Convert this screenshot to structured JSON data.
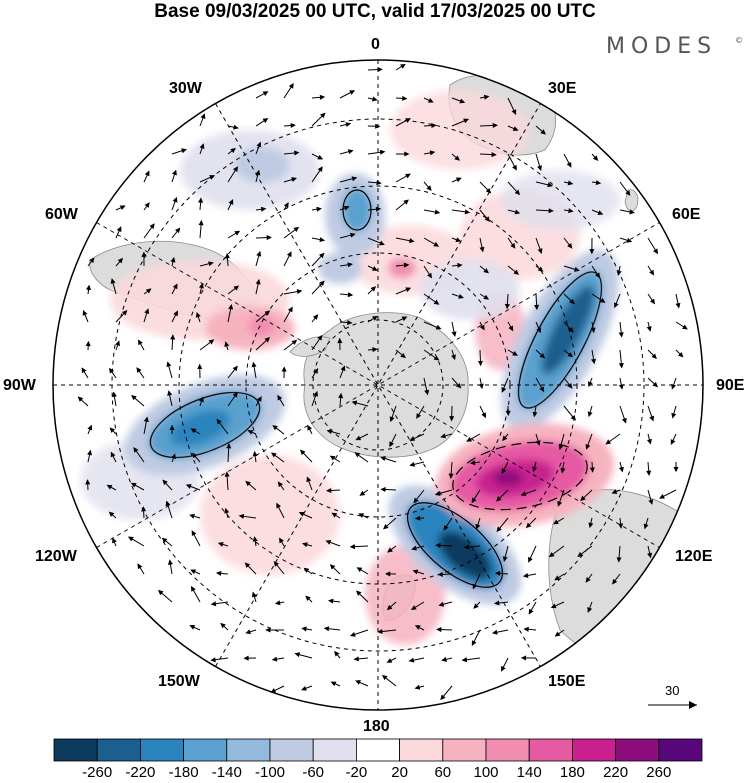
{
  "title": "Base 09/03/2025 00 UTC, valid 17/03/2025 00 UTC",
  "brand": "MODES",
  "brand_mark": "©",
  "map": {
    "projection": "south polar stereographic",
    "longitude_labels": {
      "top": "0",
      "upper_left": "30W",
      "upper_right": "30E",
      "mid_upper_left": "60W",
      "mid_upper_right": "60E",
      "left": "90W",
      "right": "90E",
      "lower_left": "120W",
      "lower_right": "120E",
      "bottom_left": "150W",
      "bottom_right": "150E",
      "bottom": "180"
    },
    "colors": {
      "land": "#dcdcdc",
      "coast": "#8a8a8a",
      "grid": "#000000"
    }
  },
  "reference_vector": {
    "label": "30"
  },
  "colorbar": {
    "colors": [
      "#0d3b5e",
      "#1a5f8e",
      "#2c84be",
      "#5aa1cf",
      "#93badc",
      "#bfcbe3",
      "#e0e0ee",
      "#ffffff",
      "#fbd8dc",
      "#f6b2bf",
      "#f08db0",
      "#e65aa4",
      "#c8208f",
      "#8e0d7c",
      "#57077a"
    ],
    "ticks": [
      "-260",
      "-220",
      "-180",
      "-140",
      "-100",
      "-60",
      "-20",
      "20",
      "60",
      "100",
      "140",
      "180",
      "220",
      "260"
    ]
  }
}
